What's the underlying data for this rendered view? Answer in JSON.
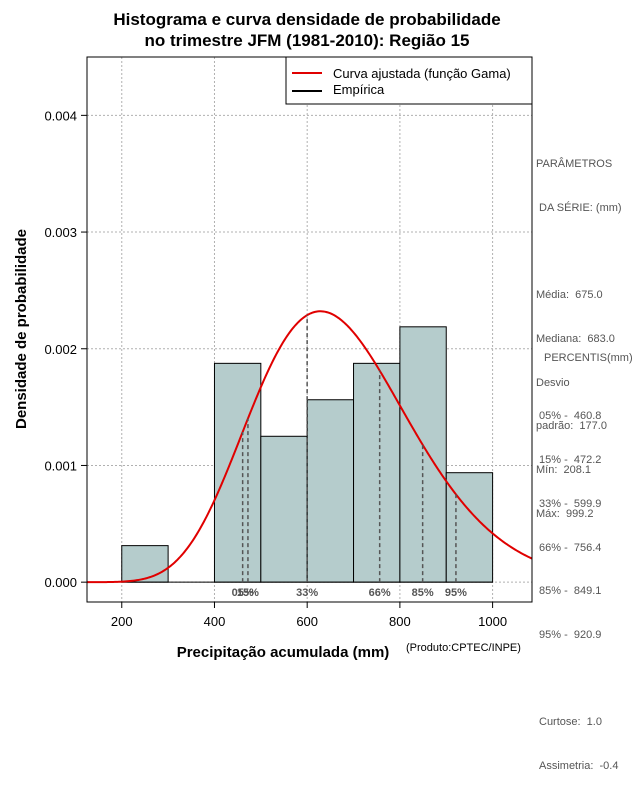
{
  "chart_data": {
    "type": "bar",
    "title_lines": [
      "Histograma e curva densidade de probabilidade",
      "no trimestre JFM (1981-2010): Região 15"
    ],
    "xlabel": "Precipitação acumulada (mm)",
    "ylabel": "Densidade de probabilidade",
    "xlim": [
      125,
      1085
    ],
    "ylim": [
      -0.00017,
      0.0045
    ],
    "x_ticks": [
      200,
      400,
      600,
      800,
      1000
    ],
    "y_ticks": [
      0.0,
      0.001,
      0.002,
      0.003,
      0.004
    ],
    "y_tick_labels": [
      "0.000",
      "0.001",
      "0.002",
      "0.003",
      "0.004"
    ],
    "grid": true,
    "bar_color": "#b5cccc",
    "curve_color": "#e00000",
    "bins": [
      {
        "start": 200,
        "end": 300,
        "density": 0.000313
      },
      {
        "start": 300,
        "end": 400,
        "density": 0.0
      },
      {
        "start": 400,
        "end": 500,
        "density": 0.001875
      },
      {
        "start": 500,
        "end": 600,
        "density": 0.00125
      },
      {
        "start": 600,
        "end": 700,
        "density": 0.001563
      },
      {
        "start": 700,
        "end": 800,
        "density": 0.001875
      },
      {
        "start": 800,
        "end": 900,
        "density": 0.002188
      },
      {
        "start": 900,
        "end": 1000,
        "density": 0.000938
      }
    ],
    "gamma_fit": {
      "shape": 14.54,
      "scale": 46.42
    },
    "percentile_lines": [
      {
        "label": "05%",
        "value": 460.8
      },
      {
        "label": "15%",
        "value": 472.2
      },
      {
        "label": "33%",
        "value": 599.9
      },
      {
        "label": "66%",
        "value": 756.4
      },
      {
        "label": "85%",
        "value": 849.1
      },
      {
        "label": "95%",
        "value": 920.9
      }
    ],
    "legend": {
      "position": "top-right",
      "entries": [
        {
          "label": "Curva ajustada (função Gama)",
          "color": "#e00000"
        },
        {
          "label": "Empírica",
          "color": "#000000"
        }
      ]
    }
  },
  "credit": "(Produto:CPTEC/INPE)",
  "stats_panel": {
    "header_lines": [
      "PARÂMETROS",
      " DA SÉRIE: (mm)"
    ],
    "lines": [
      "Média:  675.0",
      "Mediana:  683.0",
      "Desvio",
      "padrão:  177.0",
      "Mín:  208.1",
      "Máx:  999.2"
    ]
  },
  "percentiles_panel": {
    "header": "PERCENTIS(mm)",
    "lines": [
      "05% -  460.8",
      "15% -  472.2",
      "33% -  599.9",
      "66% -  756.4",
      "85% -  849.1",
      "95% -  920.9"
    ],
    "extra_lines": [
      "Curtose:  1.0",
      "Assimetria:  -0.4"
    ]
  }
}
